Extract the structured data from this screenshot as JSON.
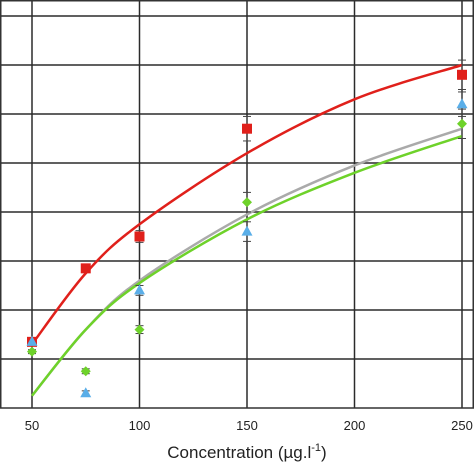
{
  "chart_data": {
    "type": "scatter",
    "title": "",
    "xlabel": "Concentration (µg.l",
    "xlabel_superscript": "-1",
    "xlabel_suffix": ")",
    "ylabel": "",
    "x_tick_labels": [
      "50",
      "100",
      "150",
      "200",
      "250"
    ],
    "x_ticks": [
      50,
      100,
      150,
      200,
      250
    ],
    "xlim": [
      30,
      253
    ],
    "ylim": [
      0,
      8.4
    ],
    "y_gridlines": [
      1,
      2,
      3,
      4,
      5,
      6,
      7,
      8
    ],
    "grid": true,
    "legend": "none",
    "series": [
      {
        "color": "#e0201b",
        "marker": "square",
        "x": [
          50,
          75,
          100,
          150,
          250
        ],
        "y": [
          1.35,
          2.85,
          3.5,
          5.7,
          6.8
        ],
        "err": [
          0.05,
          0.08,
          0.12,
          0.25,
          0.3
        ]
      },
      {
        "color": "#5aaee8",
        "marker": "triangle",
        "x": [
          50,
          75,
          100,
          150,
          250
        ],
        "y": [
          1.35,
          0.3,
          2.4,
          3.6,
          6.2
        ],
        "err": [
          0.04,
          0.05,
          0.1,
          0.2,
          0.25
        ]
      },
      {
        "color": "#6ed22a",
        "marker": "diamond",
        "x": [
          50,
          75,
          100,
          150,
          250
        ],
        "y": [
          1.15,
          0.75,
          1.6,
          4.2,
          5.8
        ],
        "err": [
          0.04,
          0.05,
          0.08,
          0.2,
          0.3
        ]
      }
    ],
    "fits": [
      {
        "color": "#e0201b",
        "x": [
          50,
          75,
          100,
          150,
          200,
          250
        ],
        "y": [
          1.3,
          2.75,
          3.75,
          5.2,
          6.3,
          7.0
        ]
      },
      {
        "color": "#aaaaaa",
        "x": [
          50,
          75,
          100,
          150,
          200,
          250
        ],
        "y": [
          0.25,
          1.6,
          2.6,
          3.95,
          4.95,
          5.7
        ]
      },
      {
        "color": "#6ed22a",
        "x": [
          50,
          75,
          100,
          150,
          200,
          250
        ],
        "y": [
          0.25,
          1.6,
          2.55,
          3.85,
          4.8,
          5.55
        ]
      }
    ]
  }
}
